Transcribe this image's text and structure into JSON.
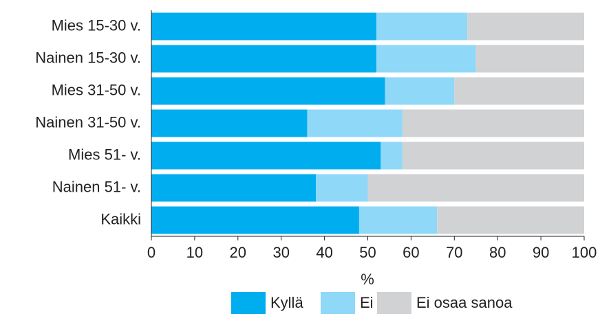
{
  "chart_data": {
    "type": "stacked_barh",
    "categories": [
      "Mies 15-30 v.",
      "Nainen 15-30 v.",
      "Mies 31-50 v.",
      "Nainen 31-50 v.",
      "Mies 51- v.",
      "Nainen 51- v.",
      "Kaikki"
    ],
    "series": [
      {
        "name": "Kyllä",
        "color": "#00aeef",
        "values": [
          52,
          52,
          54,
          36,
          53,
          38,
          48
        ]
      },
      {
        "name": "Ei",
        "color": "#8fd8f8",
        "values": [
          21,
          23,
          16,
          22,
          5,
          12,
          18
        ]
      },
      {
        "name": "Ei osaa sanoa",
        "color": "#d1d2d4",
        "values": [
          27,
          25,
          30,
          42,
          42,
          50,
          34
        ]
      }
    ],
    "xlabel": "%",
    "xlim": [
      0,
      100
    ],
    "xticks": [
      0,
      10,
      20,
      30,
      40,
      50,
      60,
      70,
      80,
      90,
      100
    ],
    "legend": "bottom"
  }
}
